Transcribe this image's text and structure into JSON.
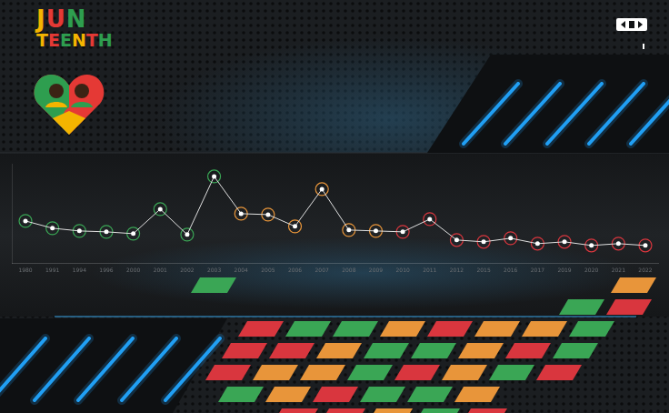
{
  "chart_data": {
    "type": "line",
    "annotations": [
      "JUN",
      "TEENTH"
    ],
    "categories": [
      "1980",
      "1991",
      "1994",
      "1996",
      "2000",
      "2001",
      "2002",
      "2003",
      "2004",
      "2005",
      "2006",
      "2007",
      "2008",
      "2009",
      "2010",
      "2011",
      "2012",
      "2015",
      "2016",
      "2017",
      "2019",
      "2020",
      "2021",
      "2022"
    ],
    "values": [
      47,
      39,
      36,
      35,
      33,
      60,
      32,
      96,
      55,
      54,
      41,
      82,
      37,
      36,
      35,
      49,
      26,
      24,
      28,
      22,
      24,
      20,
      22,
      20
    ],
    "color": "#e0e0e0",
    "colors": [
      "#3aa655",
      "#3aa655",
      "#3aa655",
      "#3aa655",
      "#3aa655",
      "#3aa655",
      "#3aa655",
      "#3aa655",
      "#e8953a",
      "#e8953a",
      "#e8953a",
      "#e8953a",
      "#e8953a",
      "#e8953a",
      "#d9363e",
      "#d9363e",
      "#d9363e",
      "#d9363e",
      "#d9363e",
      "#d9363e",
      "#d9363e",
      "#d9363e",
      "#d9363e",
      "#d9363e"
    ],
    "marker": "circle",
    "ylim": [
      0,
      110
    ],
    "grid": false,
    "tick_labels": "x"
  }
}
